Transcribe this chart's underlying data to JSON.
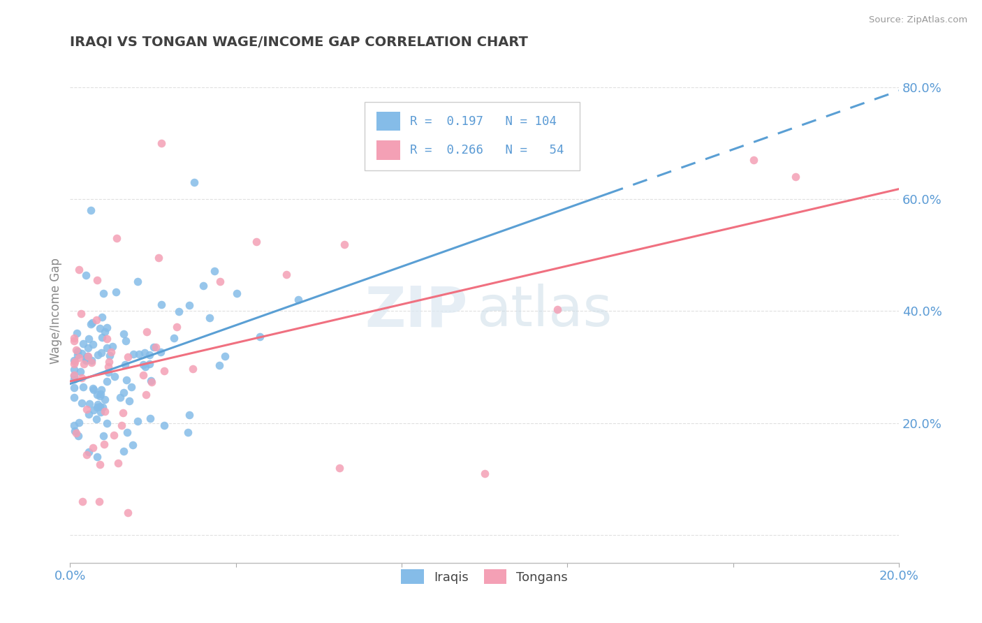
{
  "title": "IRAQI VS TONGAN WAGE/INCOME GAP CORRELATION CHART",
  "source": "Source: ZipAtlas.com",
  "ylabel": "Wage/Income Gap",
  "xlim": [
    0.0,
    0.2
  ],
  "ylim": [
    -0.05,
    0.85
  ],
  "iraqis_color": "#85bce8",
  "tongans_color": "#f4a0b5",
  "iraqis_line_color": "#5a9fd4",
  "tongans_line_color": "#f07080",
  "legend_R1": "0.197",
  "legend_N1": "104",
  "legend_R2": "0.266",
  "legend_N2": "54",
  "background_color": "#ffffff",
  "grid_color": "#e0e0e0",
  "title_color": "#404040",
  "axis_label_color": "#5b9bd5"
}
